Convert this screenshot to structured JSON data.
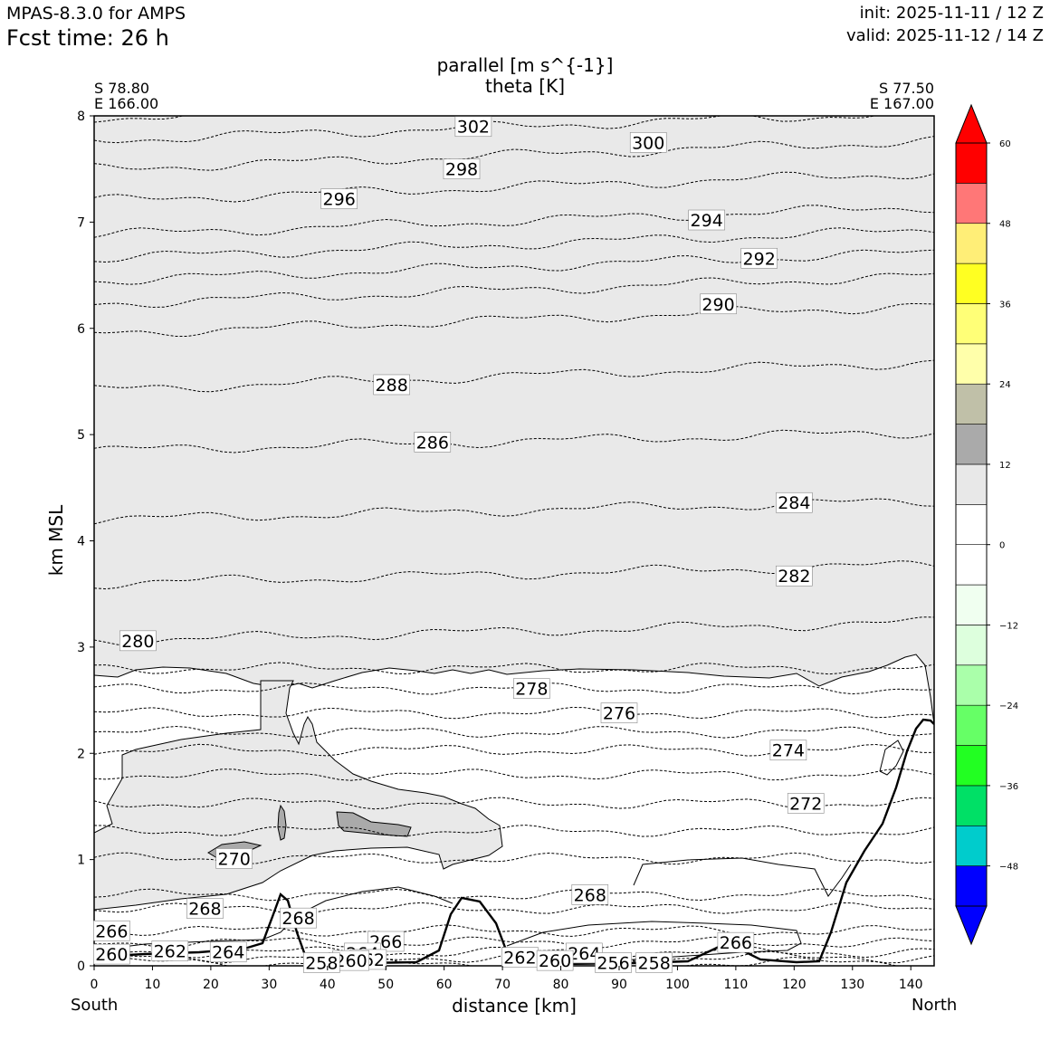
{
  "header": {
    "model": "MPAS-8.3.0 for AMPS",
    "fcst_time": "Fcst time:   26 h",
    "init": "init: 2025-11-11 / 12 Z",
    "valid": "valid: 2025-11-12 / 14 Z",
    "title_line1": "parallel [m s^{-1}]",
    "title_line2": "theta [K]"
  },
  "endpoints": {
    "left_lat": "S 78.80",
    "left_lon": "E 166.00",
    "right_lat": "S 77.50",
    "right_lon": "E 167.00",
    "left_side": "South",
    "right_side": "North"
  },
  "chart_data": {
    "type": "contour",
    "xlabel": "distance [km]",
    "ylabel": "km MSL",
    "xlim": [
      0,
      144
    ],
    "ylim": [
      0,
      8
    ],
    "xticks": [
      0,
      10,
      20,
      30,
      40,
      50,
      60,
      70,
      80,
      90,
      100,
      110,
      120,
      130,
      140
    ],
    "yticks": [
      0,
      1,
      2,
      3,
      4,
      5,
      6,
      7,
      8
    ],
    "theta_contour_labels": [
      {
        "label": "302",
        "x": 65,
        "z": 7.9
      },
      {
        "label": "300",
        "x": 95,
        "z": 7.75
      },
      {
        "label": "298",
        "x": 63,
        "z": 7.5
      },
      {
        "label": "296",
        "x": 42,
        "z": 7.22
      },
      {
        "label": "294",
        "x": 105,
        "z": 7.02
      },
      {
        "label": "292",
        "x": 114,
        "z": 6.66
      },
      {
        "label": "290",
        "x": 107,
        "z": 6.23
      },
      {
        "label": "288",
        "x": 51,
        "z": 5.47
      },
      {
        "label": "286",
        "x": 58,
        "z": 4.93
      },
      {
        "label": "284",
        "x": 120,
        "z": 4.36
      },
      {
        "label": "282",
        "x": 120,
        "z": 3.67
      },
      {
        "label": "280",
        "x": 7.5,
        "z": 3.06
      },
      {
        "label": "278",
        "x": 75,
        "z": 2.61
      },
      {
        "label": "276",
        "x": 90,
        "z": 2.38
      },
      {
        "label": "274",
        "x": 119,
        "z": 2.03
      },
      {
        "label": "272",
        "x": 122,
        "z": 1.53
      },
      {
        "label": "270",
        "x": 24,
        "z": 1.01
      },
      {
        "label": "268",
        "x": 19,
        "z": 0.54
      },
      {
        "label": "268",
        "x": 85,
        "z": 0.67
      },
      {
        "label": "268",
        "x": 35,
        "z": 0.45
      },
      {
        "label": "266",
        "x": 3,
        "z": 0.33
      },
      {
        "label": "266",
        "x": 50,
        "z": 0.23
      },
      {
        "label": "266",
        "x": 110,
        "z": 0.22
      },
      {
        "label": "264",
        "x": 23,
        "z": 0.13
      },
      {
        "label": "264",
        "x": 46,
        "z": 0.12
      },
      {
        "label": "264",
        "x": 84,
        "z": 0.12
      },
      {
        "label": "262",
        "x": 13,
        "z": 0.14
      },
      {
        "label": "262",
        "x": 73,
        "z": 0.08
      },
      {
        "label": "262",
        "x": 47,
        "z": 0.06
      },
      {
        "label": "260",
        "x": 3,
        "z": 0.11
      },
      {
        "label": "260",
        "x": 44,
        "z": 0.05
      },
      {
        "label": "260",
        "x": 79,
        "z": 0.05
      },
      {
        "label": "258",
        "x": 39,
        "z": 0.03
      },
      {
        "label": "258",
        "x": 96,
        "z": 0.03
      },
      {
        "label": "256",
        "x": 89,
        "z": 0.03
      }
    ],
    "colorbar": {
      "ticks": [
        "60",
        "48",
        "36",
        "24",
        "12",
        "0",
        "−12",
        "−24",
        "−36",
        "−48"
      ],
      "colors": [
        "#0000ff",
        "#00cccc",
        "#00e066",
        "#22ff22",
        "#66ff66",
        "#aaffaa",
        "#ddffdd",
        "#f0fff0",
        "#ffffff",
        "#ffffff",
        "#e8e8e8",
        "#aaaaaa",
        "#c0c0a8",
        "#ffffaa",
        "#ffff77",
        "#ffff22",
        "#ffee77",
        "#ff7777",
        "#ff0000"
      ],
      "under_color": "#0000ff",
      "over_color": "#ff0000"
    },
    "shading_note_colors": {
      "light_gray": "#e9e9e9",
      "mid_gray": "#aaaaaa"
    }
  }
}
